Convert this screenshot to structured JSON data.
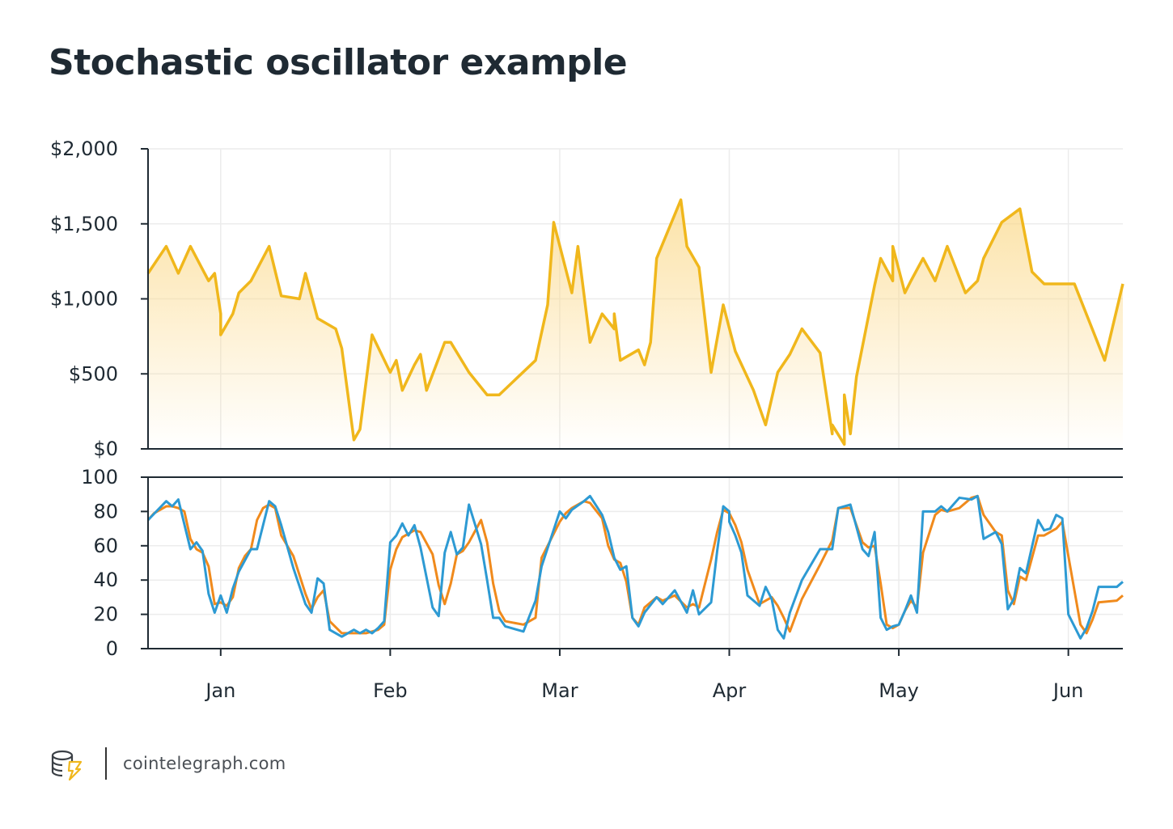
{
  "title": "Stochastic oscillator example",
  "footer": {
    "site": "cointelegraph.com",
    "logo_icon": "cointelegraph-logo-icon"
  },
  "colors": {
    "price_line": "#f0b71c",
    "price_fill_top": "#fbd98a",
    "k_line": "#2d9ad3",
    "d_line": "#f08a1c",
    "grid": "#ececec",
    "axis": "#1f2a33"
  },
  "chart_data": [
    {
      "type": "area",
      "x_tick_labels": [
        "Jan",
        "Feb",
        "Mar",
        "Apr",
        "May",
        "Jun"
      ],
      "x_tick_days": [
        32,
        60,
        88,
        116,
        144,
        172
      ],
      "x_range": [
        20,
        181
      ],
      "ylim": [
        0,
        2000
      ],
      "y_ticks": [
        0,
        500,
        1000,
        1500,
        2000
      ],
      "y_tick_labels": [
        "$0",
        "$500",
        "$1,000",
        "$1,500",
        "$2,000"
      ],
      "grid": true,
      "series": [
        {
          "x": [
            20,
            23,
            25,
            27,
            30,
            31,
            32,
            32,
            34,
            35,
            37,
            40,
            42,
            45,
            46,
            48,
            51,
            52,
            54,
            55,
            57,
            60,
            61,
            62,
            62,
            64,
            65,
            66,
            69,
            70,
            73,
            76,
            78,
            84,
            86,
            87,
            90,
            91,
            93,
            95,
            97,
            97,
            98,
            101,
            102,
            103,
            104,
            108,
            109,
            111,
            113,
            115,
            117,
            120,
            122,
            124,
            126,
            128,
            131,
            133,
            133,
            135,
            135,
            136,
            137,
            140,
            141,
            143,
            143,
            145,
            146
          ],
          "y": [
            1170,
            1350,
            1170,
            1350,
            1120,
            1170,
            900,
            760,
            900,
            1040,
            1120,
            1350,
            1020,
            1000,
            1170,
            870,
            800,
            670,
            60,
            130,
            760,
            510,
            590,
            390,
            390,
            560,
            630,
            390,
            710,
            710,
            510,
            360,
            360,
            590,
            960,
            1510,
            1040,
            1350,
            710,
            900,
            800,
            900,
            590,
            660,
            560,
            710,
            1270,
            1660,
            1350,
            1210,
            510,
            960,
            650,
            390,
            160,
            510,
            630,
            800,
            640,
            100,
            160,
            30,
            360,
            100,
            480,
            1090,
            1270,
            1120,
            1350,
            1040,
            1120
          ]
        },
        {
          "x": [
            146,
            148,
            150,
            152,
            155,
            157,
            158,
            161,
            164,
            166,
            168,
            172,
            173,
            178,
            181
          ],
          "y": [
            1120,
            1270,
            1120,
            1350,
            1040,
            1120,
            1270,
            1510,
            1600,
            1180,
            1100,
            1100,
            1100,
            590,
            1100
          ]
        }
      ]
    },
    {
      "type": "line",
      "x_tick_labels": [
        "Jan",
        "Feb",
        "Mar",
        "Apr",
        "May",
        "Jun"
      ],
      "x_tick_days": [
        32,
        60,
        88,
        116,
        144,
        172
      ],
      "x_range": [
        20,
        181
      ],
      "ylim": [
        0,
        100
      ],
      "y_ticks": [
        0,
        20,
        40,
        60,
        80,
        100
      ],
      "y_tick_labels": [
        "0",
        "20",
        "40",
        "60",
        "80",
        "100"
      ],
      "grid": true,
      "series": [
        {
          "color_key": "k_line",
          "x": [
            20,
            23,
            24,
            25,
            27,
            28,
            29,
            30,
            31,
            32,
            33,
            34,
            35,
            37,
            38,
            40,
            41,
            42,
            44,
            46,
            47,
            48,
            49,
            50,
            52,
            54,
            55,
            56,
            57,
            58,
            59,
            60,
            61,
            62,
            63,
            64,
            65,
            67,
            68,
            69,
            70,
            71,
            72,
            73,
            75,
            76,
            77,
            78,
            79,
            82,
            84,
            85,
            88,
            89,
            90,
            92,
            93,
            95,
            96,
            97,
            98,
            99,
            100,
            101,
            102,
            104,
            105,
            107,
            109,
            110,
            111,
            113,
            114,
            115,
            116,
            116,
            117,
            118,
            119,
            121,
            122,
            123,
            124,
            125,
            126,
            128,
            131,
            133,
            134,
            136,
            138,
            139,
            140,
            141,
            142,
            143,
            144,
            145,
            146,
            147,
            148,
            150,
            151,
            152,
            154,
            156,
            157,
            158,
            160,
            161,
            162,
            163,
            164,
            165,
            167,
            168,
            169,
            170,
            171,
            172,
            174,
            175,
            176,
            177,
            180,
            181
          ],
          "y": [
            75,
            86,
            83,
            87,
            58,
            62,
            57,
            32,
            21,
            31,
            21,
            35,
            45,
            58,
            58,
            86,
            83,
            72,
            47,
            26,
            21,
            41,
            38,
            11,
            7,
            11,
            9,
            11,
            9,
            12,
            16,
            62,
            66,
            73,
            66,
            72,
            59,
            24,
            19,
            56,
            68,
            55,
            59,
            84,
            61,
            40,
            18,
            18,
            13,
            10,
            28,
            48,
            80,
            76,
            81,
            86,
            89,
            78,
            68,
            53,
            46,
            48,
            18,
            13,
            21,
            30,
            26,
            34,
            21,
            34,
            20,
            27,
            57,
            83,
            80,
            74,
            66,
            56,
            31,
            25,
            36,
            29,
            11,
            6,
            21,
            40,
            58,
            58,
            82,
            84,
            58,
            54,
            68,
            18,
            11,
            13,
            14,
            22,
            31,
            21,
            80,
            80,
            83,
            80,
            88,
            87,
            89,
            64,
            68,
            61,
            23,
            29,
            47,
            44,
            75,
            69,
            70,
            78,
            76,
            20,
            6,
            12,
            22,
            36,
            36,
            39
          ]
        },
        {
          "color_key": "d_line",
          "x": [
            20,
            21,
            23,
            24,
            25,
            26,
            27,
            28,
            29,
            30,
            31,
            32,
            33,
            34,
            35,
            36,
            37,
            38,
            39,
            40,
            41,
            42,
            44,
            46,
            47,
            48,
            49,
            50,
            52,
            54,
            56,
            57,
            58,
            59,
            60,
            61,
            62,
            63,
            64,
            65,
            67,
            68,
            69,
            70,
            71,
            72,
            73,
            75,
            76,
            77,
            78,
            79,
            82,
            84,
            85,
            88,
            89,
            90,
            92,
            93,
            95,
            96,
            97,
            98,
            99,
            100,
            101,
            102,
            104,
            105,
            107,
            109,
            110,
            111,
            113,
            114,
            115,
            116,
            117,
            118,
            119,
            121,
            122,
            123,
            124,
            125,
            126,
            128,
            131,
            133,
            134,
            136,
            138,
            139,
            140,
            141,
            142,
            143,
            144,
            145,
            146,
            147,
            148,
            150,
            151,
            152,
            154,
            156,
            157,
            158,
            160,
            161,
            162,
            163,
            164,
            165,
            167,
            168,
            169,
            170,
            171,
            172,
            174,
            175,
            176,
            177,
            180,
            181
          ],
          "y": [
            75,
            79,
            83,
            83,
            82,
            80,
            64,
            58,
            56,
            48,
            26,
            27,
            25,
            30,
            47,
            54,
            58,
            75,
            82,
            84,
            82,
            66,
            54,
            32,
            23,
            30,
            34,
            16,
            9,
            9,
            9,
            10,
            11,
            14,
            46,
            58,
            65,
            67,
            69,
            68,
            55,
            37,
            26,
            38,
            55,
            57,
            62,
            75,
            62,
            38,
            22,
            16,
            14,
            18,
            53,
            74,
            79,
            82,
            86,
            85,
            76,
            60,
            52,
            50,
            39,
            18,
            14,
            24,
            30,
            28,
            31,
            24,
            26,
            24,
            52,
            68,
            81,
            79,
            72,
            62,
            46,
            26,
            28,
            30,
            25,
            18,
            10,
            29,
            49,
            63,
            82,
            82,
            62,
            59,
            60,
            38,
            14,
            12,
            14,
            22,
            28,
            24,
            56,
            78,
            81,
            80,
            82,
            88,
            89,
            78,
            68,
            66,
            34,
            26,
            42,
            40,
            66,
            66,
            68,
            70,
            74,
            54,
            14,
            9,
            17,
            27,
            28,
            31
          ]
        }
      ]
    }
  ]
}
